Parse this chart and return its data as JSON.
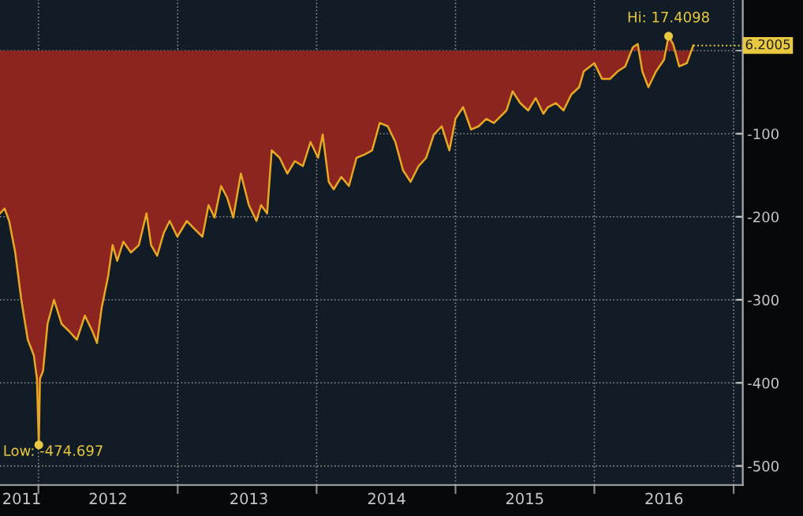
{
  "chart_data": {
    "type": "area",
    "x": [
      "2011-09-22",
      "2011-10-04",
      "2011-10-16",
      "2011-11-01",
      "2011-11-17",
      "2011-12-04",
      "2011-12-20",
      "2011-12-28",
      "2012-01-02",
      "2012-01-05",
      "2012-01-13",
      "2012-01-25",
      "2012-02-11",
      "2012-03-02",
      "2012-03-22",
      "2012-04-11",
      "2012-05-02",
      "2012-05-22",
      "2012-06-03",
      "2012-06-15",
      "2012-07-02",
      "2012-07-14",
      "2012-07-26",
      "2012-08-11",
      "2012-08-31",
      "2012-09-21",
      "2012-10-11",
      "2012-10-23",
      "2012-11-08",
      "2012-11-25",
      "2012-12-11",
      "2012-12-31",
      "2013-01-25",
      "2013-02-15",
      "2013-03-07",
      "2013-03-23",
      "2013-04-08",
      "2013-04-25",
      "2013-05-11",
      "2013-05-27",
      "2013-06-16",
      "2013-07-07",
      "2013-07-27",
      "2013-08-08",
      "2013-08-24",
      "2013-09-05",
      "2013-09-26",
      "2013-10-16",
      "2013-11-05",
      "2013-11-26",
      "2013-12-16",
      "2014-01-05",
      "2014-01-17",
      "2014-02-02",
      "2014-02-15",
      "2014-03-07",
      "2014-03-27",
      "2014-04-16",
      "2014-05-07",
      "2014-05-27",
      "2014-06-16",
      "2014-07-07",
      "2014-07-27",
      "2014-08-16",
      "2014-09-05",
      "2014-09-26",
      "2014-10-16",
      "2014-11-05",
      "2014-11-26",
      "2014-12-16",
      "2015-01-01",
      "2015-01-21",
      "2015-02-11",
      "2015-03-03",
      "2015-03-23",
      "2015-04-12",
      "2015-05-15",
      "2015-05-31",
      "2015-06-20",
      "2015-07-11",
      "2015-07-31",
      "2015-08-20",
      "2015-09-01",
      "2015-09-22",
      "2015-10-12",
      "2015-11-01",
      "2015-11-22",
      "2015-12-04",
      "2016-01-01",
      "2016-01-21",
      "2016-02-11",
      "2016-03-02",
      "2016-03-22",
      "2016-04-11",
      "2016-04-24",
      "2016-05-06",
      "2016-05-22",
      "2016-06-11",
      "2016-07-02",
      "2016-07-14",
      "2016-07-26",
      "2016-08-11",
      "2016-08-31",
      "2016-09-17"
    ],
    "series": [
      {
        "color": "#e8a825",
        "values": [
          -196,
          -190,
          -205,
          -243,
          -300,
          -348,
          -367,
          -395,
          -474.697,
          -395,
          -386,
          -329,
          -300,
          -329,
          -338,
          -348,
          -319,
          -338,
          -352,
          -310,
          -272,
          -234,
          -253,
          -230,
          -243,
          -234,
          -196,
          -234,
          -247,
          -220,
          -205,
          -224,
          -205,
          -215,
          -224,
          -186,
          -201,
          -163,
          -177,
          -201,
          -148,
          -186,
          -205,
          -186,
          -196,
          -120,
          -129,
          -148,
          -133,
          -139,
          -110,
          -129,
          -101,
          -158,
          -167,
          -152,
          -163,
          -129,
          -125,
          -120,
          -87,
          -91,
          -110,
          -144,
          -158,
          -139,
          -129,
          -101,
          -91,
          -120,
          -82,
          -68,
          -95,
          -91,
          -82,
          -87,
          -72,
          -49,
          -63,
          -72,
          -57,
          -76,
          -68,
          -63,
          -72,
          -53,
          -44,
          -25,
          -15,
          -34,
          -34,
          -25,
          -19,
          4,
          8,
          -25,
          -44,
          -25,
          -11,
          17.4098,
          8,
          -19,
          -15,
          6.2005
        ]
      }
    ],
    "xlim": [
      "2011-09-22",
      "2017-01-25"
    ],
    "xticks": [
      {
        "value": "2011-11-18",
        "label": "2011"
      },
      {
        "value": "2012-01-01",
        "label": null
      },
      {
        "value": "2012-07-02",
        "label": "2012"
      },
      {
        "value": "2013-01-01",
        "label": null
      },
      {
        "value": "2013-07-07",
        "label": "2013"
      },
      {
        "value": "2014-01-01",
        "label": null
      },
      {
        "value": "2014-07-04",
        "label": "2014"
      },
      {
        "value": "2015-01-01",
        "label": null
      },
      {
        "value": "2015-07-02",
        "label": "2015"
      },
      {
        "value": "2016-01-01",
        "label": null
      },
      {
        "value": "2016-07-02",
        "label": "2016"
      },
      {
        "value": "2017-01-01",
        "label": null
      }
    ],
    "ylim": [
      -523,
      61
    ],
    "yticks": [
      {
        "value": 0,
        "label": null
      },
      {
        "value": -100,
        "label": "-100"
      },
      {
        "value": -200,
        "label": "-200"
      },
      {
        "value": -300,
        "label": "-300"
      },
      {
        "value": -400,
        "label": "-400"
      },
      {
        "value": -500,
        "label": "-500"
      }
    ],
    "annotations": [
      {
        "text": "Hi: 17.4098",
        "x": "2016-07-14",
        "y": 17.4098
      },
      {
        "text": "Low: -474.697",
        "x": "2012-01-02",
        "y": -474.697
      }
    ],
    "ref_lines": [
      {
        "axis": "y",
        "value": 6.2005,
        "label": "6.2005",
        "color": "#e8c840",
        "line_style": "dotted"
      }
    ],
    "grid": true,
    "legend": false
  }
}
